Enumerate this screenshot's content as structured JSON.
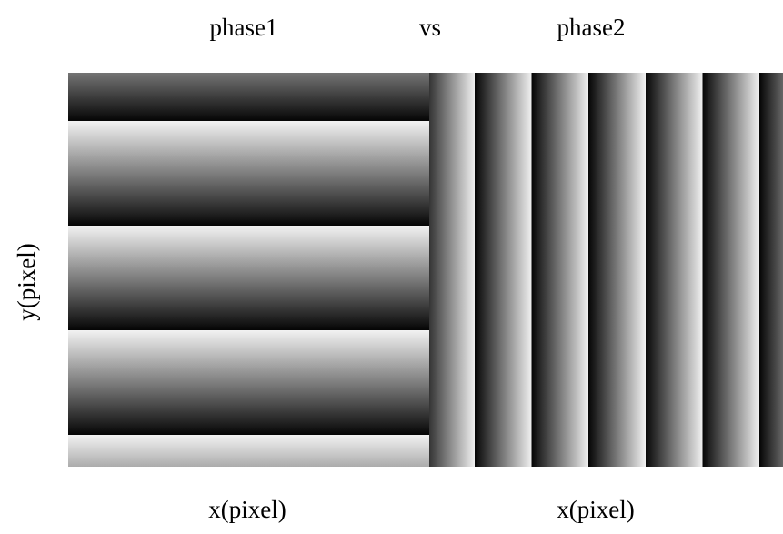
{
  "header": {
    "left_title": "phase1",
    "separator": "vs",
    "right_title": "phase2"
  },
  "axes": {
    "y_label": "y(pixel)",
    "x_label_left": "x(pixel)",
    "x_label_right": "x(pixel)"
  }
}
